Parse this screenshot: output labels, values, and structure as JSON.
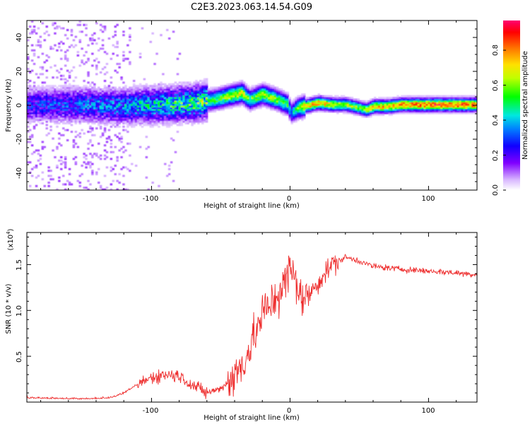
{
  "title": "C2E3.2023.063.14.54.G09",
  "chart_data": [
    {
      "type": "heatmap",
      "name": "spectrogram",
      "xlabel": "Height of straight line (km)",
      "ylabel": "Frequency (Hz)",
      "xlim": [
        -190,
        135
      ],
      "ylim": [
        -50,
        50
      ],
      "xticks": [
        -100,
        0,
        100
      ],
      "xtick_labels": [
        "-100",
        "0",
        "100"
      ],
      "yticks": [
        -40,
        -20,
        0,
        20,
        40
      ],
      "ytick_labels": [
        "-40",
        "-20",
        "0",
        "20",
        "40"
      ],
      "colorbar": {
        "label": "Normalized spectral amplitude",
        "range": [
          0,
          0.97
        ],
        "ticks": [
          0.0,
          0.2,
          0.4,
          0.6,
          0.8
        ],
        "tick_labels": [
          "0.0",
          "0.2",
          "0.4",
          "0.6",
          "0.8"
        ]
      },
      "ridge": {
        "x": [
          -190,
          -150,
          -120,
          -90,
          -70,
          -55,
          -45,
          -35,
          -30,
          -20,
          -10,
          -2,
          0,
          5,
          10,
          20,
          30,
          40,
          50,
          55,
          60,
          70,
          80,
          100,
          120,
          135
        ],
        "frequency": [
          0,
          0,
          -1,
          0,
          1,
          3,
          5,
          7,
          3,
          6,
          3,
          0,
          -5,
          -2,
          -1,
          1,
          0,
          0,
          -2,
          -3,
          -1,
          -1,
          0,
          0,
          0,
          0
        ],
        "peak_amplitude": [
          0.25,
          0.3,
          0.35,
          0.45,
          0.5,
          0.55,
          0.65,
          0.7,
          0.55,
          0.65,
          0.6,
          0.55,
          0.35,
          0.6,
          0.75,
          0.8,
          0.7,
          0.65,
          0.6,
          0.7,
          0.75,
          0.8,
          0.85,
          0.9,
          0.92,
          0.88
        ]
      }
    },
    {
      "type": "line",
      "name": "snr",
      "xlabel": "Height of straight line (km)",
      "ylabel": "SNR (10 * v/v)",
      "scale_label": "(x10",
      "scale_exponent": "4",
      "scale_suffix": ")",
      "color": "#ee2f2f",
      "xlim": [
        -190,
        135
      ],
      "ylim": [
        0,
        18500
      ],
      "xticks": [
        -100,
        0,
        100
      ],
      "xtick_labels": [
        "-100",
        "0",
        "100"
      ],
      "yticks": [
        5000,
        10000,
        15000
      ],
      "ytick_labels": [
        "0.5",
        "1.0",
        "1.5"
      ],
      "series": [
        {
          "name": "SNR",
          "x": [
            -190,
            -170,
            -150,
            -130,
            -120,
            -110,
            -100,
            -90,
            -80,
            -70,
            -60,
            -50,
            -40,
            -35,
            -30,
            -25,
            -20,
            -15,
            -10,
            -5,
            0,
            5,
            10,
            15,
            20,
            25,
            30,
            40,
            50,
            60,
            80,
            100,
            120,
            135
          ],
          "values": [
            400,
            350,
            300,
            400,
            900,
            1900,
            2700,
            3000,
            2900,
            1800,
            1000,
            1500,
            2800,
            4000,
            5500,
            7500,
            9500,
            10500,
            11500,
            12500,
            14500,
            13000,
            11000,
            12000,
            13000,
            14000,
            15000,
            15800,
            15400,
            14800,
            14500,
            14300,
            14100,
            13900
          ]
        }
      ]
    }
  ]
}
